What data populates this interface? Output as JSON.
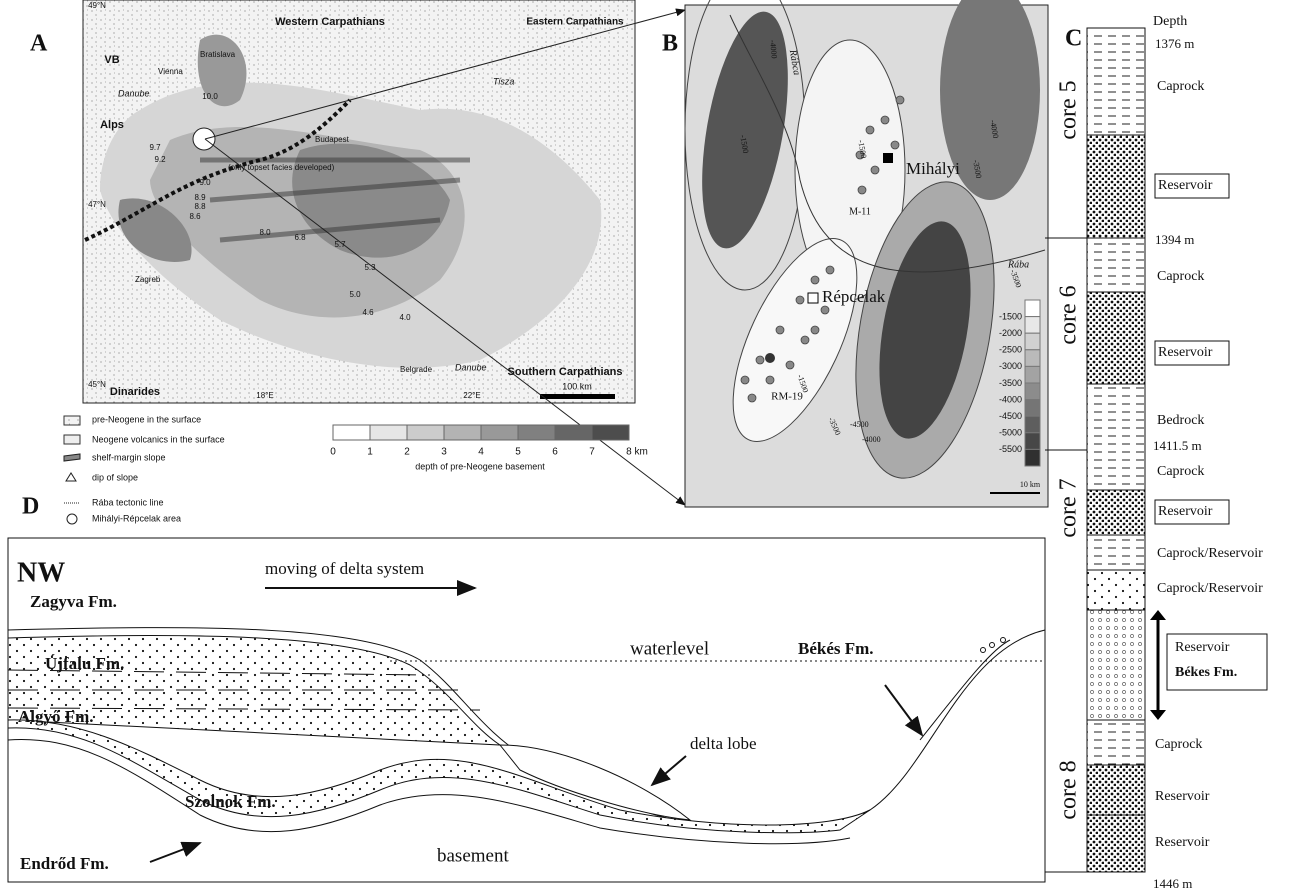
{
  "panel_a": {
    "label": "A",
    "regions": [
      "Western Carpathians",
      "Eastern Carpathians",
      "Alps",
      "Dinarides",
      "Southern Carpathians",
      "VB"
    ],
    "cities": [
      "Vienna",
      "Bratislava",
      "Budapest",
      "Zagreb",
      "Belgrade"
    ],
    "rivers": [
      "Danube",
      "Tisza",
      "Danube"
    ],
    "coordinates": [
      "49°N",
      "47°N",
      "45°N",
      "18°E",
      "22°E"
    ],
    "ages": [
      "10.0",
      "9.7",
      "9.2",
      "9.0",
      "8.9",
      "8.8",
      "8.6",
      "8.0",
      "6.8",
      "5.7",
      "5.3",
      "5.0",
      "4.6",
      "4.0"
    ],
    "note": "(only topset facies developed)",
    "scale": "100 km"
  },
  "legend_a": {
    "items": [
      "pre-Neogene in the surface",
      "Neogene volcanics in the surface",
      "shelf-margin slope",
      "dip of slope",
      "Rába tectonic line",
      "Mihályi-Répcelak area"
    ],
    "depth_labels": [
      "0",
      "1",
      "2",
      "3",
      "4",
      "5",
      "6",
      "7",
      "8 km"
    ],
    "depth_title": "depth of pre-Neogene basement"
  },
  "panel_b": {
    "label": "B",
    "places": [
      "Mihályi",
      "Répcelak"
    ],
    "wells": [
      "M-11",
      "RM-19"
    ],
    "rivers": [
      "Rábca",
      "Rába"
    ],
    "contours": [
      "-4000",
      "-1500",
      "-3500",
      "-4000",
      "-1500",
      "-3500",
      "-4500",
      "-4000",
      "-1500",
      "-3500"
    ],
    "scale_labels": [
      "-1500",
      "-2000",
      "-2500",
      "-3000",
      "-3500",
      "-4000",
      "-4500",
      "-5000",
      "-5500"
    ],
    "scale": "10 km"
  },
  "panel_c": {
    "label": "C",
    "depth_title": "Depth",
    "depths": [
      "1376 m",
      "1394 m",
      "1411.5 m",
      "1446 m"
    ],
    "cores": [
      "core 5",
      "core 6",
      "core 7",
      "core 8"
    ],
    "layers": [
      "Caprock",
      "Reservoir",
      "Caprock",
      "Reservoir",
      "Bedrock",
      "Caprock",
      "Reservoir",
      "Caprock/Reservoir",
      "Caprock/Reservoir",
      "Reservoir",
      "Békes Fm.",
      "Caprock",
      "Reservoir",
      "Reservoir"
    ]
  },
  "panel_d": {
    "label": "D",
    "direction": "NW",
    "arrow_label": "moving of delta system",
    "formations": [
      "Zagyva Fm.",
      "Újfalu Fm.",
      "Algyő Fm.",
      "Szolnok Fm.",
      "Endrőd Fm.",
      "Békés Fm."
    ],
    "labels": [
      "waterlevel",
      "delta lobe",
      "basement"
    ]
  }
}
